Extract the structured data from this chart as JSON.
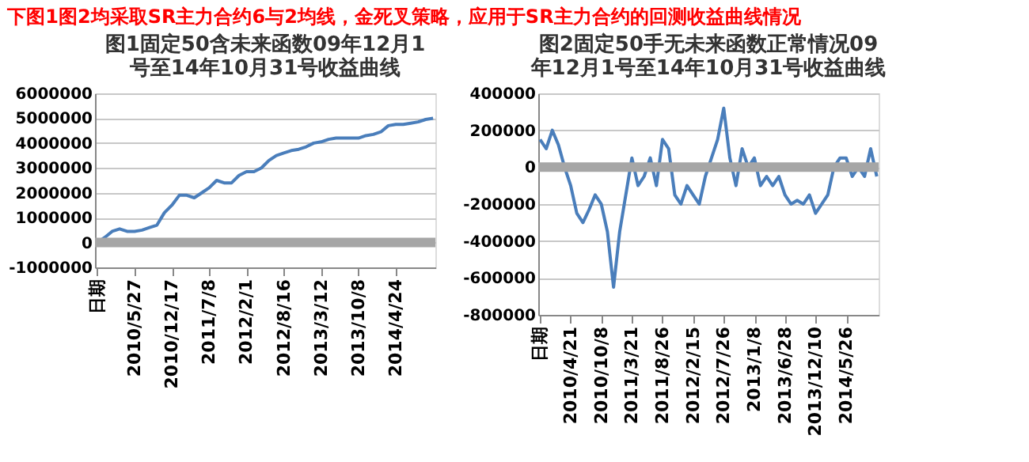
{
  "chart_data": [
    {
      "type": "line",
      "title": "图1固定50含未来函数09年12月1\n号至14年10月31号收益曲线",
      "annotations": [
        "下图1图2均采取SR主力合约6与2均线，金死叉策略，应用于SR主力合约的回测收益曲线情况"
      ],
      "categories": [
        "日期",
        null,
        null,
        null,
        null,
        "2010/5/27",
        null,
        null,
        null,
        null,
        "2010/12/17",
        null,
        null,
        null,
        null,
        "2011/7/8",
        null,
        null,
        null,
        null,
        "2012/2/1",
        null,
        null,
        null,
        null,
        "2012/8/16",
        null,
        null,
        null,
        null,
        "2013/3/12",
        null,
        null,
        null,
        null,
        "2013/10/8",
        null,
        null,
        null,
        null,
        "2014/4/24",
        null,
        null,
        null,
        null,
        null
      ],
      "series": [
        {
          "color": "#4a7ebb",
          "values": [
            0,
            200000,
            450000,
            550000,
            450000,
            450000,
            500000,
            600000,
            700000,
            1200000,
            1500000,
            1900000,
            1900000,
            1800000,
            2000000,
            2200000,
            2500000,
            2400000,
            2400000,
            2700000,
            2850000,
            2850000,
            3000000,
            3300000,
            3500000,
            3600000,
            3700000,
            3750000,
            3850000,
            4000000,
            4050000,
            4150000,
            4200000,
            4200000,
            4200000,
            4200000,
            4300000,
            4350000,
            4450000,
            4700000,
            4750000,
            4750000,
            4800000,
            4850000,
            4950000,
            5000000
          ]
        }
      ],
      "ylim": [
        -1000000,
        6000000
      ],
      "yticks": [
        -1000000,
        0,
        1000000,
        2000000,
        3000000,
        4000000,
        5000000,
        6000000
      ],
      "grid": "y",
      "ref_lines": [
        {
          "axis": "y",
          "value": 0,
          "color": "#a6a6a6"
        }
      ]
    },
    {
      "type": "line",
      "title": "图2固定50手无未来函数正常情况09\n年12月1号至14年10月31号收益曲线",
      "categories": [
        "日期",
        null,
        null,
        null,
        null,
        "2010/4/21",
        null,
        null,
        null,
        null,
        "2010/10/8",
        null,
        null,
        null,
        null,
        "2011/3/21",
        null,
        null,
        null,
        null,
        "2011/8/26",
        null,
        null,
        null,
        null,
        "2012/2/15",
        null,
        null,
        null,
        null,
        "2012/7/26",
        null,
        null,
        null,
        null,
        "2013/1/8",
        null,
        null,
        null,
        null,
        "2013/6/28",
        null,
        null,
        null,
        null,
        "2013/12/10",
        null,
        null,
        null,
        null,
        "2014/5/26",
        null,
        null,
        null,
        null,
        null
      ],
      "series": [
        {
          "color": "#4a7ebb",
          "values": [
            150000,
            100000,
            200000,
            120000,
            0,
            -100000,
            -250000,
            -300000,
            -230000,
            -150000,
            -200000,
            -350000,
            -650000,
            -350000,
            -150000,
            50000,
            -100000,
            -50000,
            50000,
            -100000,
            150000,
            100000,
            -150000,
            -200000,
            -100000,
            -150000,
            -200000,
            -50000,
            50000,
            150000,
            320000,
            50000,
            -100000,
            100000,
            0,
            50000,
            -100000,
            -50000,
            -100000,
            -50000,
            -150000,
            -200000,
            -180000,
            -200000,
            -150000,
            -250000,
            -200000,
            -150000,
            0,
            50000,
            50000,
            -50000,
            0,
            -50000,
            100000,
            -50000
          ]
        }
      ],
      "ylim": [
        -800000,
        400000
      ],
      "yticks": [
        -800000,
        -600000,
        -400000,
        -200000,
        0,
        200000,
        400000
      ],
      "grid": "y",
      "ref_lines": [
        {
          "axis": "y",
          "value": 0,
          "color": "#a6a6a6"
        }
      ]
    }
  ]
}
